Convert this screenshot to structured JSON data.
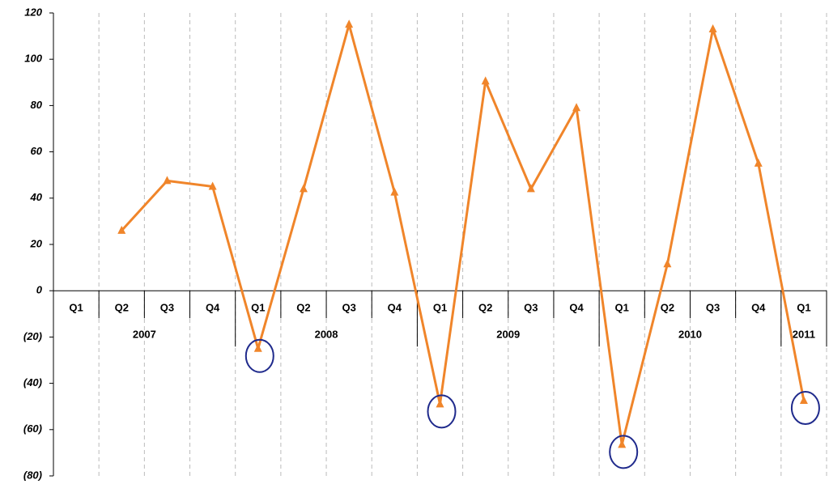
{
  "chart_data": {
    "type": "line",
    "color": "#f0852a",
    "highlight_color": "#1f2a8c",
    "groups": [
      {
        "name": "2007",
        "categories": [
          "Q1",
          "Q2",
          "Q3",
          "Q4"
        ]
      },
      {
        "name": "2008",
        "categories": [
          "Q1",
          "Q2",
          "Q3",
          "Q4"
        ]
      },
      {
        "name": "2009",
        "categories": [
          "Q1",
          "Q2",
          "Q3",
          "Q4"
        ]
      },
      {
        "name": "2010",
        "categories": [
          "Q1",
          "Q2",
          "Q3",
          "Q4"
        ]
      },
      {
        "name": "2011",
        "categories": [
          "Q1"
        ]
      }
    ],
    "values": [
      null,
      26,
      47.5,
      45,
      -25,
      44,
      115,
      42.5,
      -49,
      90.5,
      44,
      79,
      -66.5,
      11.5,
      113,
      55,
      -47.5
    ],
    "ylim": [
      -80,
      120
    ],
    "yticks": [
      {
        "value": -80,
        "label": "(80)"
      },
      {
        "value": -60,
        "label": "(60)"
      },
      {
        "value": -40,
        "label": "(40)"
      },
      {
        "value": -20,
        "label": "(20)"
      },
      0,
      20,
      40,
      60,
      80,
      100,
      120
    ]
  }
}
